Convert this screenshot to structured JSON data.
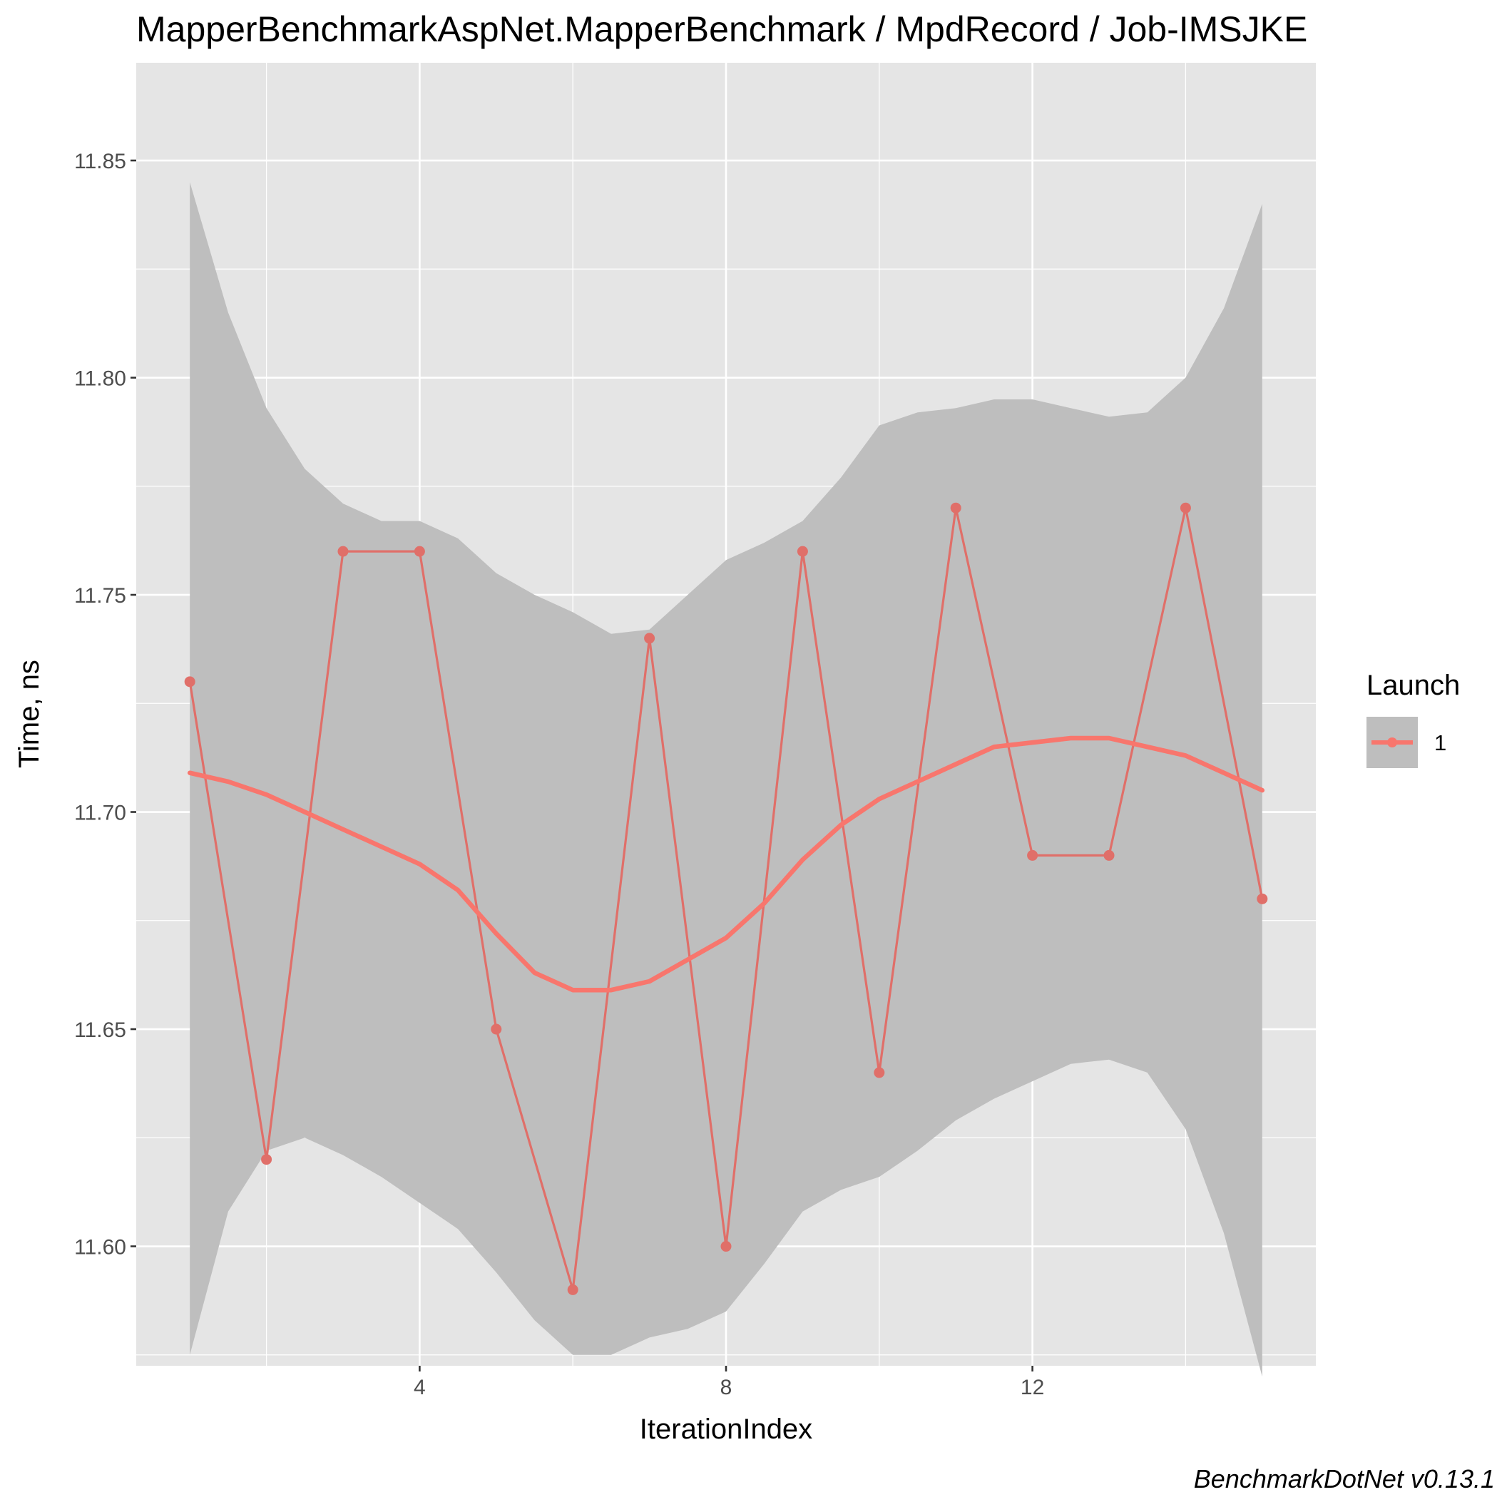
{
  "chart_data": {
    "type": "line",
    "title": "MapperBenchmarkAspNet.MapperBenchmark / MpdRecord / Job-IMSJKE",
    "xlabel": "IterationIndex",
    "ylabel": "Time, ns",
    "caption": "BenchmarkDotNet v0.13.1",
    "xlim": [
      0.3,
      15.7
    ],
    "ylim": [
      11.5725,
      11.8725
    ],
    "x_ticks": [
      4,
      8,
      12
    ],
    "x_tick_labels": [
      "4",
      "8",
      "12"
    ],
    "x_minor_ticks": [
      2,
      6,
      10,
      14
    ],
    "y_ticks": [
      11.6,
      11.65,
      11.7,
      11.75,
      11.8,
      11.85
    ],
    "y_tick_labels": [
      "11.60",
      "11.65",
      "11.70",
      "11.75",
      "11.80",
      "11.85"
    ],
    "y_minor_ticks": [
      11.575,
      11.625,
      11.675,
      11.725,
      11.775,
      11.825
    ],
    "grid": true,
    "legend": {
      "title": "Launch",
      "placement": "right",
      "entries": [
        "1"
      ]
    },
    "colors": {
      "series": "#f8766d",
      "series_line": "#e06f69",
      "ribbon": "#bebebe",
      "panel": "#e5e5e5",
      "grid": "#ffffff"
    },
    "series": [
      {
        "name": "1",
        "x": [
          1,
          2,
          3,
          4,
          5,
          6,
          7,
          8,
          9,
          10,
          11,
          12,
          13,
          14,
          15
        ],
        "values": [
          11.73,
          11.62,
          11.76,
          11.76,
          11.65,
          11.59,
          11.74,
          11.6,
          11.76,
          11.64,
          11.77,
          11.69,
          11.69,
          11.77,
          11.68
        ]
      }
    ],
    "smooth": {
      "x": [
        1,
        1.5,
        2,
        2.5,
        3,
        3.5,
        4,
        4.5,
        5,
        5.5,
        6,
        6.5,
        7,
        7.5,
        8,
        8.5,
        9,
        9.5,
        10,
        10.5,
        11,
        11.5,
        12,
        12.5,
        13,
        13.5,
        14,
        14.5,
        15
      ],
      "fit": [
        11.709,
        11.707,
        11.704,
        11.7,
        11.696,
        11.692,
        11.688,
        11.682,
        11.672,
        11.663,
        11.659,
        11.659,
        11.661,
        11.666,
        11.671,
        11.679,
        11.689,
        11.697,
        11.703,
        11.707,
        11.711,
        11.715,
        11.716,
        11.717,
        11.717,
        11.715,
        11.713,
        11.709,
        11.705
      ],
      "lower": [
        11.575,
        11.608,
        11.622,
        11.625,
        11.621,
        11.616,
        11.61,
        11.604,
        11.594,
        11.583,
        11.575,
        11.575,
        11.579,
        11.581,
        11.585,
        11.596,
        11.608,
        11.613,
        11.616,
        11.622,
        11.629,
        11.634,
        11.638,
        11.642,
        11.643,
        11.64,
        11.627,
        11.603,
        11.57
      ],
      "upper": [
        11.845,
        11.815,
        11.793,
        11.779,
        11.771,
        11.767,
        11.767,
        11.763,
        11.755,
        11.75,
        11.746,
        11.741,
        11.742,
        11.75,
        11.758,
        11.762,
        11.767,
        11.777,
        11.789,
        11.792,
        11.793,
        11.795,
        11.795,
        11.793,
        11.791,
        11.792,
        11.8,
        11.816,
        11.84
      ]
    }
  }
}
